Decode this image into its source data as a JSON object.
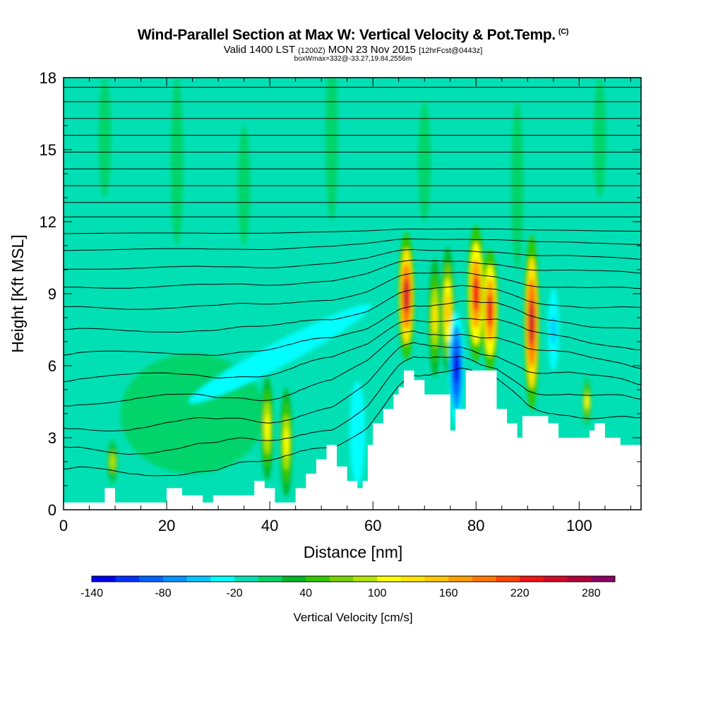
{
  "chart_data": {
    "type": "heatmap",
    "title": "Wind-Parallel Section at Max W: Vertical Velocity & Pot.Temp.",
    "title_mark": "(C)",
    "subtitle_main": "Valid 1400 LST",
    "subtitle_utc": "(1200Z)",
    "subtitle_date": "MON 23 Nov 2015",
    "subtitle_fcst": "[12hrFcst@0443z]",
    "note": "boxWmax=332@-33.27,19.84,2556m",
    "xlabel": "Distance [nm]",
    "ylabel": "Height [Kft MSL]",
    "xlim": [
      0,
      112
    ],
    "ylim": [
      0,
      18
    ],
    "xticks": [
      0,
      20,
      40,
      60,
      80,
      100
    ],
    "yticks": [
      0,
      3,
      6,
      9,
      12,
      15,
      18
    ],
    "terrain_kft": [
      [
        0,
        0.3
      ],
      [
        8,
        0.3
      ],
      [
        8,
        0.9
      ],
      [
        10,
        0.9
      ],
      [
        10,
        0.3
      ],
      [
        20,
        0.3
      ],
      [
        20,
        0.9
      ],
      [
        23,
        0.9
      ],
      [
        23,
        0.6
      ],
      [
        27,
        0.6
      ],
      [
        27,
        0.3
      ],
      [
        29,
        0.3
      ],
      [
        29,
        0.6
      ],
      [
        37,
        0.6
      ],
      [
        37,
        1.2
      ],
      [
        39,
        1.2
      ],
      [
        39,
        0.9
      ],
      [
        41,
        0.9
      ],
      [
        41,
        0.3
      ],
      [
        45,
        0.3
      ],
      [
        45,
        0.9
      ],
      [
        47,
        0.9
      ],
      [
        47,
        1.5
      ],
      [
        49,
        1.5
      ],
      [
        49,
        2.1
      ],
      [
        51,
        2.1
      ],
      [
        51,
        2.7
      ],
      [
        53,
        2.7
      ],
      [
        53,
        1.8
      ],
      [
        55,
        1.8
      ],
      [
        55,
        1.2
      ],
      [
        57,
        1.2
      ],
      [
        57,
        0.9
      ],
      [
        58,
        0.9
      ],
      [
        58,
        1.2
      ],
      [
        59,
        1.2
      ],
      [
        59,
        2.7
      ],
      [
        60,
        2.7
      ],
      [
        60,
        3.6
      ],
      [
        62,
        3.6
      ],
      [
        62,
        4.2
      ],
      [
        64,
        4.2
      ],
      [
        64,
        4.8
      ],
      [
        65,
        4.8
      ],
      [
        65,
        5.1
      ],
      [
        66,
        5.1
      ],
      [
        66,
        5.8
      ],
      [
        68,
        5.8
      ],
      [
        68,
        5.4
      ],
      [
        70,
        5.4
      ],
      [
        70,
        4.8
      ],
      [
        75,
        4.8
      ],
      [
        75,
        3.3
      ],
      [
        76,
        3.3
      ],
      [
        76,
        4.2
      ],
      [
        78,
        4.2
      ],
      [
        78,
        5.8
      ],
      [
        84,
        5.8
      ],
      [
        84,
        4.2
      ],
      [
        86,
        4.2
      ],
      [
        86,
        3.6
      ],
      [
        88,
        3.6
      ],
      [
        88,
        3.0
      ],
      [
        89,
        3.0
      ],
      [
        89,
        3.9
      ],
      [
        94,
        3.9
      ],
      [
        94,
        3.6
      ],
      [
        96,
        3.6
      ],
      [
        96,
        3.0
      ],
      [
        102,
        3.0
      ],
      [
        102,
        3.3
      ],
      [
        103,
        3.3
      ],
      [
        103,
        3.6
      ],
      [
        105,
        3.6
      ],
      [
        105,
        3.0
      ],
      [
        108,
        3.0
      ],
      [
        108,
        2.7
      ],
      [
        112,
        2.7
      ]
    ],
    "features": [
      {
        "x": 9.5,
        "z": 2.0,
        "w": 0.8,
        "h": 0.9,
        "value": 85
      },
      {
        "x": 39.5,
        "z": 3.4,
        "w": 0.9,
        "h": 2.1,
        "value": 110
      },
      {
        "x": 43.2,
        "z": 2.8,
        "w": 0.9,
        "h": 2.2,
        "value": 110
      },
      {
        "x": 57.0,
        "z": 3.2,
        "w": 1.6,
        "h": 2.8,
        "value": -40
      },
      {
        "x": 66.5,
        "z": 8.9,
        "w": 1.3,
        "h": 2.6,
        "value": 250
      },
      {
        "x": 72.0,
        "z": 8.0,
        "w": 0.9,
        "h": 2.4,
        "value": 120
      },
      {
        "x": 74.5,
        "z": 8.3,
        "w": 1.0,
        "h": 2.6,
        "value": 140
      },
      {
        "x": 76.2,
        "z": 5.9,
        "w": 1.2,
        "h": 2.3,
        "value": -125
      },
      {
        "x": 80.0,
        "z": 9.0,
        "w": 1.4,
        "h": 2.8,
        "value": 230
      },
      {
        "x": 82.7,
        "z": 8.3,
        "w": 1.3,
        "h": 2.5,
        "value": 220
      },
      {
        "x": 90.8,
        "z": 7.8,
        "w": 1.2,
        "h": 3.6,
        "value": 255
      },
      {
        "x": 95.0,
        "z": 7.5,
        "w": 1.0,
        "h": 2.2,
        "value": -50
      },
      {
        "x": 101.5,
        "z": 4.5,
        "w": 0.6,
        "h": 1.0,
        "value": 100
      }
    ],
    "theta_levels_kft": [
      1.2,
      2.2,
      3.2,
      4.3,
      5.3,
      6.3,
      7.3,
      8.3,
      9.2,
      10.0,
      10.8,
      11.5,
      12.2,
      12.8,
      13.5,
      14.2,
      14.9,
      15.6,
      16.3,
      17.0,
      17.6
    ],
    "colorbar": {
      "title": "Vertical Velocity [cm/s]",
      "min": -140,
      "step": 20,
      "labels": [
        "-140",
        "-80",
        "-20",
        "40",
        "100",
        "160",
        "220",
        "280"
      ],
      "colors": [
        "#0000ee",
        "#0032ff",
        "#0064ff",
        "#0096ff",
        "#00c8ff",
        "#00ffff",
        "#00e0b4",
        "#00d46a",
        "#00b828",
        "#32c800",
        "#78d200",
        "#b4e600",
        "#ffff00",
        "#ffe600",
        "#ffc800",
        "#ffa000",
        "#ff7800",
        "#ff4600",
        "#f01414",
        "#d20a28",
        "#b4003c",
        "#8c0064"
      ]
    }
  }
}
